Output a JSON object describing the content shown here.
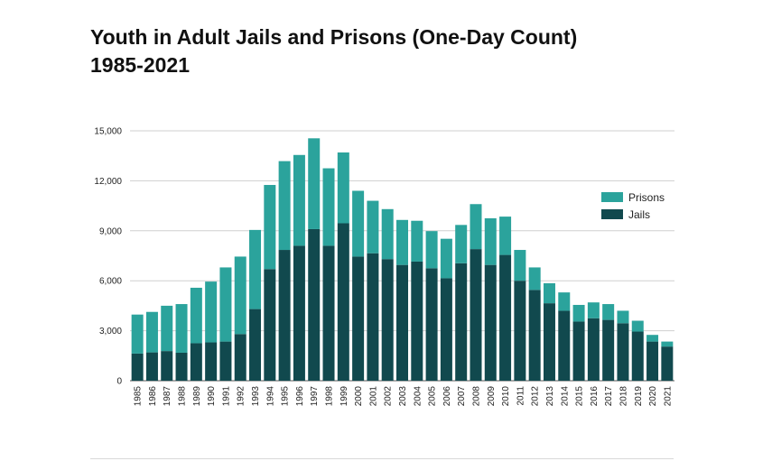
{
  "chart_data": {
    "type": "bar",
    "stacked": true,
    "title_line1": "Youth in Adult Jails and Prisons (One-Day Count)",
    "title_line2": "1985-2021",
    "xlabel": "",
    "ylabel": "",
    "ylim": [
      0,
      15000
    ],
    "yticks": [
      0,
      3000,
      6000,
      9000,
      12000,
      15000
    ],
    "ytick_labels": [
      "0",
      "3,000",
      "6,000",
      "9,000",
      "12,000",
      "15,000"
    ],
    "grid": true,
    "legend_position": "right",
    "categories": [
      "1985",
      "1986",
      "1987",
      "1988",
      "1989",
      "1990",
      "1991",
      "1992",
      "1993",
      "1994",
      "1995",
      "1996",
      "1997",
      "1998",
      "1999",
      "2000",
      "2001",
      "2002",
      "2003",
      "2004",
      "2005",
      "2006",
      "2007",
      "2008",
      "2009",
      "2010",
      "2011",
      "2012",
      "2013",
      "2014",
      "2015",
      "2016",
      "2017",
      "2018",
      "2019",
      "2020",
      "2021"
    ],
    "series": [
      {
        "name": "Jails",
        "color": "#11494e",
        "values": [
          1630,
          1700,
          1780,
          1680,
          2250,
          2300,
          2350,
          2800,
          4300,
          6700,
          7850,
          8100,
          9100,
          8100,
          9450,
          7450,
          7650,
          7300,
          6950,
          7150,
          6750,
          6150,
          7050,
          7900,
          6950,
          7550,
          6000,
          5450,
          4650,
          4200,
          3550,
          3750,
          3650,
          3450,
          2950,
          2350,
          2050
        ]
      },
      {
        "name": "Prisons",
        "color": "#2ba39c",
        "values": [
          2340,
          2430,
          2720,
          2920,
          3330,
          3650,
          4450,
          4650,
          4750,
          5050,
          5330,
          5450,
          5450,
          4650,
          4250,
          3950,
          3150,
          3000,
          2700,
          2450,
          2230,
          2370,
          2300,
          2700,
          2800,
          2300,
          1850,
          1350,
          1200,
          1100,
          1000,
          950,
          950,
          750,
          650,
          400,
          300
        ]
      }
    ]
  }
}
